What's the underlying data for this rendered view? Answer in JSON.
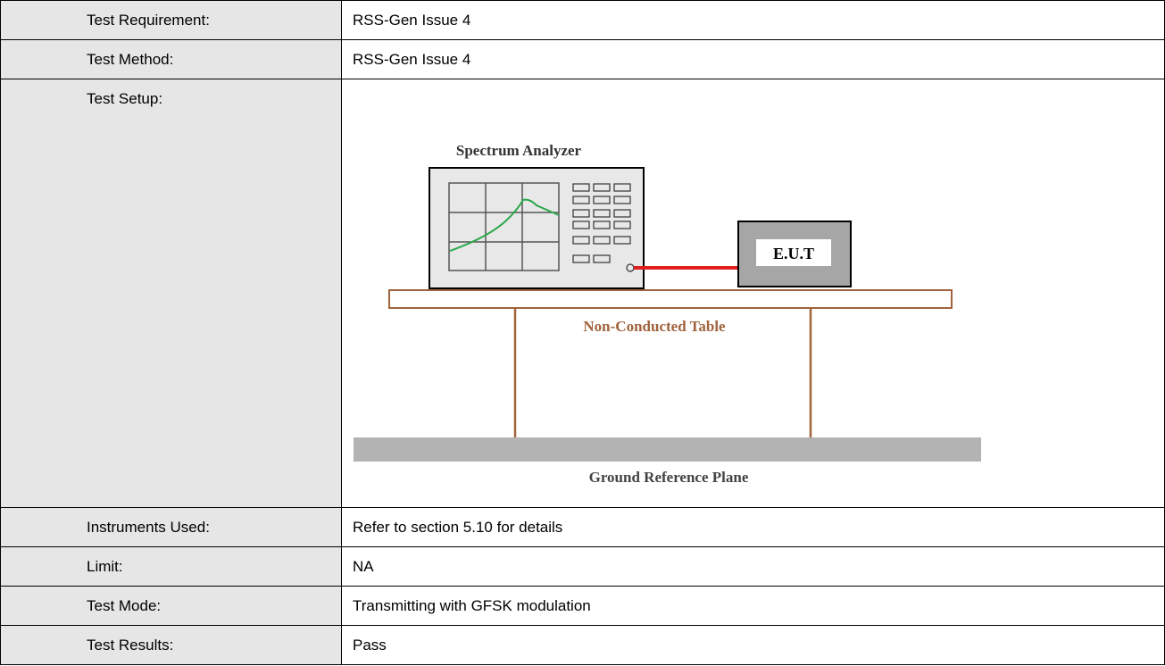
{
  "table": {
    "rows": [
      {
        "label": "Test Requirement:",
        "value": "RSS-Gen Issue 4"
      },
      {
        "label": "Test Method:",
        "value": "RSS-Gen Issue 4"
      },
      {
        "label": "Test Setup:",
        "value": null
      },
      {
        "label": "Instruments Used:",
        "value": "Refer to section 5.10 for details"
      },
      {
        "label": "Limit:",
        "value": "NA"
      },
      {
        "label": "Test Mode:",
        "value": "Transmitting with GFSK modulation"
      },
      {
        "label": "Test Results:",
        "value": "Pass"
      }
    ]
  },
  "diagram": {
    "analyzer_label": "Spectrum Analyzer",
    "eut_label": "E.U.T",
    "table_label": "Non-Conducted Table",
    "ground_label": "Ground Reference Plane"
  }
}
